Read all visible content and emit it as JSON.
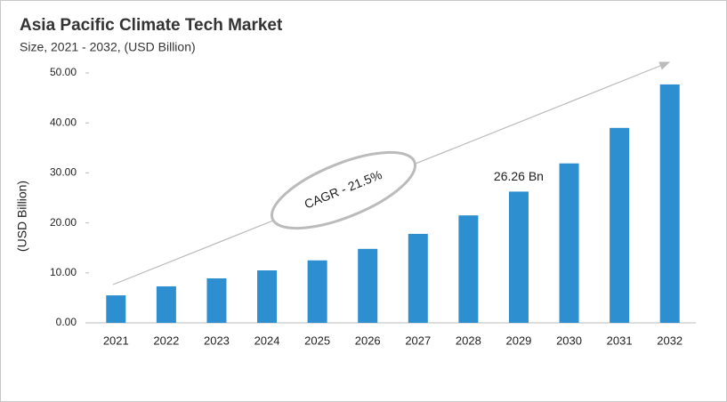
{
  "chart_data": {
    "type": "bar",
    "title": "Asia Pacific Climate Tech Market",
    "subtitle": "Size, 2021 - 2032, (USD Billion)",
    "y_label": "(USD Billion)",
    "annotation": "CAGR - 21.5%",
    "categories": [
      "2021",
      "2022",
      "2023",
      "2024",
      "2025",
      "2026",
      "2027",
      "2028",
      "2029",
      "2030",
      "2031",
      "2032"
    ],
    "values": [
      5.5,
      7.3,
      8.9,
      10.5,
      12.5,
      14.8,
      17.8,
      21.5,
      26.26,
      31.9,
      39.0,
      47.7
    ],
    "value_labels": [
      null,
      null,
      null,
      null,
      null,
      null,
      null,
      null,
      "26.26 Bn",
      null,
      null,
      null
    ],
    "color": "#2e8fd0",
    "ylim": [
      0,
      50
    ],
    "yticks": [
      {
        "value": 0,
        "label": "0.00"
      },
      {
        "value": 10,
        "label": "10.00"
      },
      {
        "value": 20,
        "label": "20.00"
      },
      {
        "value": 30,
        "label": "30.00"
      },
      {
        "value": 40,
        "label": "40.00"
      },
      {
        "value": 50,
        "label": "50.00"
      }
    ]
  }
}
